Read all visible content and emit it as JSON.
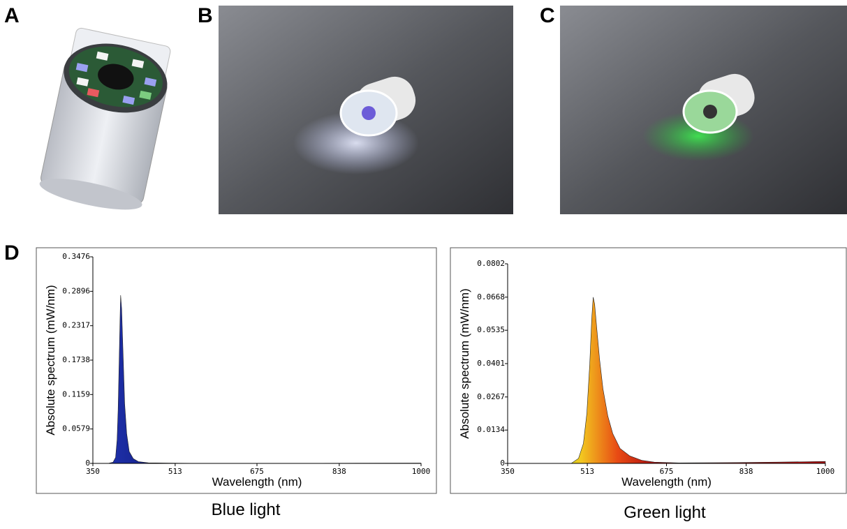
{
  "panel_labels": [
    "A",
    "B",
    "C",
    "D"
  ],
  "chart_data": [
    {
      "type": "area",
      "caption": "Blue light",
      "xlabel": "Wavelength (nm)",
      "ylabel": "Absolute spectrum (mW/nm)",
      "x": [
        350,
        380,
        390,
        395,
        398,
        400,
        402,
        404,
        405,
        407,
        410,
        413,
        417,
        422,
        430,
        440,
        460,
        500,
        600,
        800,
        1000
      ],
      "values": [
        0,
        0,
        0.002,
        0.01,
        0.04,
        0.09,
        0.17,
        0.25,
        0.283,
        0.26,
        0.18,
        0.1,
        0.05,
        0.02,
        0.008,
        0.003,
        0.001,
        0.0005,
        0,
        0.0003,
        0.0005
      ],
      "colors": [
        "#2236b8",
        "#050a55"
      ],
      "xlim": [
        350,
        1000
      ],
      "xticks": [
        350,
        513,
        675,
        838,
        1000
      ],
      "ylim": [
        0,
        0.3476
      ],
      "yticks": [
        0,
        0.0579,
        0.1159,
        0.1738,
        0.2317,
        0.2896,
        0.3476
      ]
    },
    {
      "type": "area",
      "caption": "Green light",
      "xlabel": "Wavelength (nm)",
      "ylabel": "Absolute spectrum (mW/nm)",
      "x": [
        350,
        480,
        495,
        505,
        512,
        518,
        522,
        525,
        528,
        532,
        538,
        545,
        555,
        565,
        580,
        600,
        625,
        650,
        700,
        800,
        900,
        1000
      ],
      "values": [
        0,
        0,
        0.002,
        0.008,
        0.02,
        0.04,
        0.058,
        0.0668,
        0.064,
        0.055,
        0.042,
        0.03,
        0.019,
        0.012,
        0.006,
        0.003,
        0.0012,
        0.0005,
        0.0002,
        0.0003,
        0.0005,
        0.0008
      ],
      "colors": [
        "#18c830",
        "#8fe01a",
        "#f2c820",
        "#e84a14",
        "#b01010"
      ],
      "xlim": [
        350,
        1000
      ],
      "xticks": [
        350,
        513,
        675,
        838,
        1000
      ],
      "ylim": [
        0,
        0.0802
      ],
      "yticks": [
        0,
        0.0134,
        0.0267,
        0.0401,
        0.0535,
        0.0668,
        0.0802
      ]
    }
  ]
}
